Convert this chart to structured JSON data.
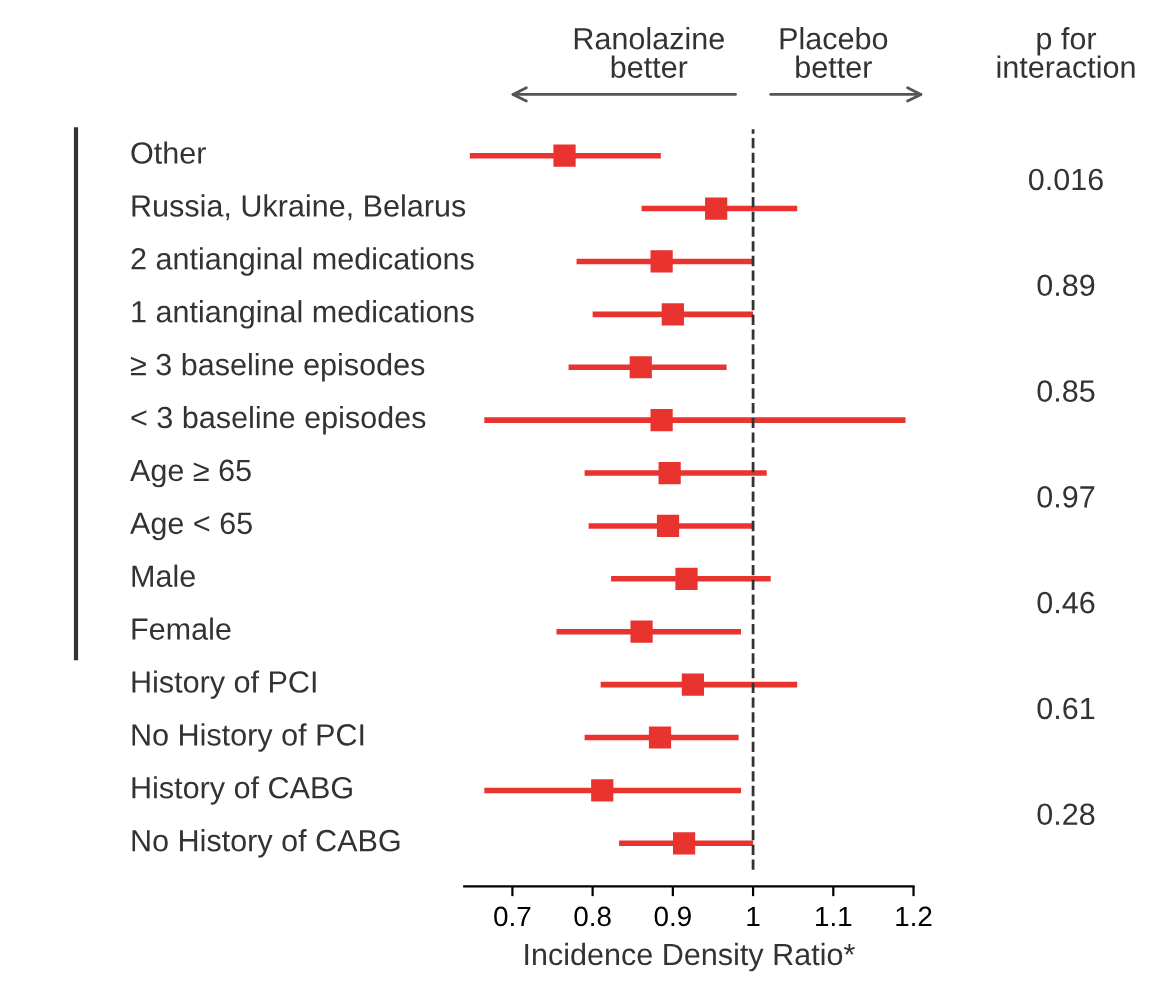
{
  "chart_data": {
    "type": "scatter",
    "orientation": "horizontal",
    "xlabel": "Incidence Density Ratio*",
    "categories": [
      "Other",
      "Russia, Ukraine, Belarus",
      "2 antianginal medications",
      "1 antianginal medications",
      "≥ 3 baseline episodes",
      "< 3 baseline episodes",
      "Age ≥ 65",
      "Age < 65",
      "Male",
      "Female",
      "History of PCI",
      "No History of PCI",
      "History of CABG",
      "No History of CABG"
    ],
    "series": [
      {
        "color": "#e8332f",
        "values": [
          0.765,
          0.954,
          0.886,
          0.9,
          0.86,
          0.886,
          0.896,
          0.894,
          0.917,
          0.861,
          0.925,
          0.884,
          0.812,
          0.914
        ],
        "errors": [
          [
            0.647,
            0.885
          ],
          [
            0.861,
            1.055
          ],
          [
            0.78,
            1.0
          ],
          [
            0.8,
            1.0
          ],
          [
            0.77,
            0.967
          ],
          [
            0.665,
            1.19
          ],
          [
            0.79,
            1.017
          ],
          [
            0.795,
            1.0
          ],
          [
            0.823,
            1.022
          ],
          [
            0.755,
            0.985
          ],
          [
            0.81,
            1.055
          ],
          [
            0.79,
            0.982
          ],
          [
            0.665,
            0.985
          ],
          [
            0.833,
            1.0
          ]
        ]
      }
    ],
    "marker": "square",
    "xlim": [
      0.64,
      1.2
    ],
    "xticks": [
      0.7,
      0.8,
      0.9,
      1,
      1.1,
      1.2
    ],
    "ref_lines": [
      {
        "axis": "x",
        "value": 1,
        "line_style": "dashed",
        "color": "#333333"
      }
    ],
    "annotations": [
      "Ranolazine\nbetter",
      "Placebo\nbetter",
      "p for\ninteraction",
      "0.016",
      "0.89",
      "0.85",
      "0.97",
      "0.46",
      "0.61",
      "0.28"
    ],
    "grid": false,
    "legend": false
  }
}
